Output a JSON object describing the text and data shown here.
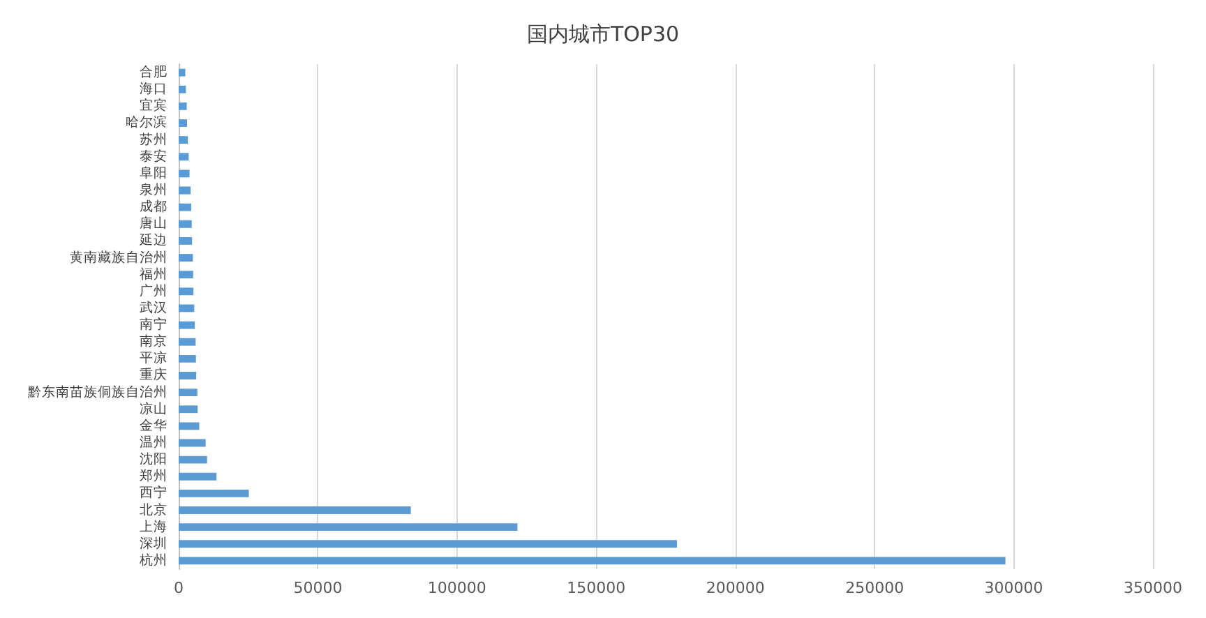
{
  "chart_data": {
    "type": "bar",
    "orientation": "horizontal",
    "title": "国内城市TOP30",
    "categories": [
      "合肥",
      "海口",
      "宜宾",
      "哈尔滨",
      "苏州",
      "泰安",
      "阜阳",
      "泉州",
      "成都",
      "唐山",
      "延边",
      "黄南藏族自治州",
      "福州",
      "广州",
      "武汉",
      "南宁",
      "南京",
      "平凉",
      "重庆",
      "黔东南苗族侗族自治州",
      "凉山",
      "金华",
      "温州",
      "沈阳",
      "郑州",
      "西宁",
      "北京",
      "上海",
      "深圳",
      "杭州"
    ],
    "values": [
      2400,
      2600,
      2900,
      3000,
      3300,
      3600,
      3900,
      4300,
      4500,
      4700,
      4800,
      5100,
      5200,
      5300,
      5600,
      5800,
      6100,
      6200,
      6300,
      6700,
      6800,
      7400,
      9700,
      10200,
      13600,
      25200,
      83400,
      121700,
      179000,
      297000
    ],
    "color": "#5b9bd5",
    "xlim": [
      0,
      350000
    ],
    "xticks": [
      0,
      50000,
      100000,
      150000,
      200000,
      250000,
      300000,
      350000
    ],
    "grid": "x"
  }
}
